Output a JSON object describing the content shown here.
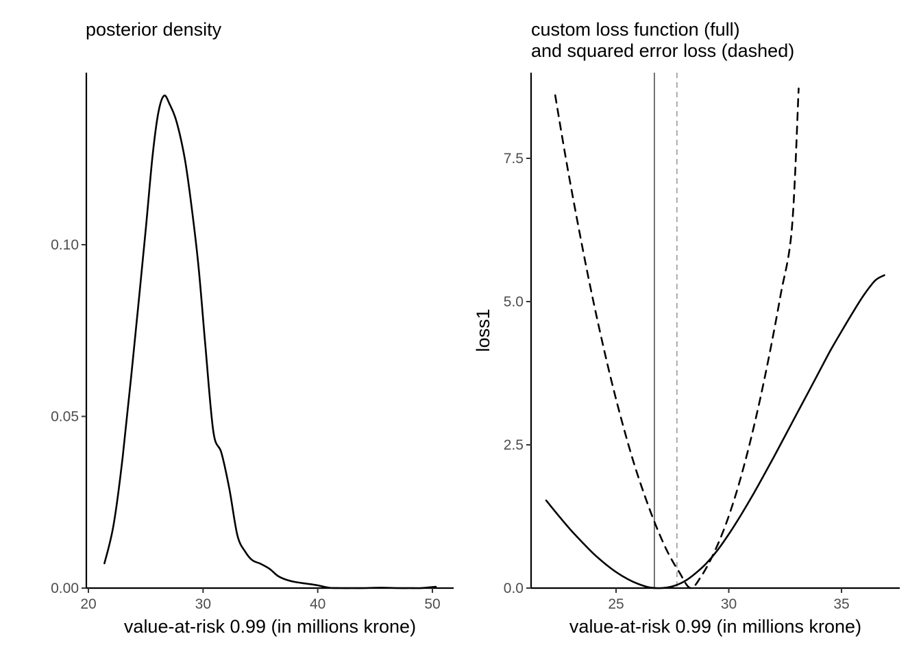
{
  "chart_data": [
    {
      "type": "line",
      "title": "posterior density",
      "subtitle": "",
      "xlabel": "value-at-risk 0.99 (in millions krone)",
      "ylabel": "",
      "xlim": [
        20,
        52
      ],
      "ylim": [
        0,
        0.15
      ],
      "x_ticks": [
        20,
        30,
        40,
        50
      ],
      "x_tick_labels": [
        "20",
        "30",
        "40",
        "50"
      ],
      "y_ticks": [
        0,
        0.05,
        0.1
      ],
      "y_tick_labels": [
        "0.00",
        "0.05",
        "0.10"
      ],
      "grid": false,
      "series": [
        {
          "color": "#000000",
          "x": [
            21.4,
            22.2,
            23.0,
            24.0,
            25.0,
            25.6,
            26.1,
            26.6,
            27.1,
            27.7,
            28.4,
            29.0,
            29.6,
            30.2,
            30.9,
            31.6,
            32.3,
            33.0,
            33.7,
            34.3,
            35.0,
            35.8,
            36.5,
            37.2,
            38.0,
            39.0,
            40.0,
            41.0,
            42.0,
            43.0,
            44.0,
            45.0,
            46.0,
            47.0,
            48.0,
            49.0,
            50.3
          ],
          "y": [
            0.0072,
            0.0185,
            0.0385,
            0.0705,
            0.1045,
            0.126,
            0.1385,
            0.1434,
            0.1408,
            0.1357,
            0.1251,
            0.111,
            0.0938,
            0.0706,
            0.0455,
            0.0394,
            0.0288,
            0.0153,
            0.0105,
            0.0081,
            0.0071,
            0.0056,
            0.0036,
            0.0025,
            0.0018,
            0.0013,
            0.0008,
            0.0001,
            0.0,
            0.0,
            0.0,
            0.0001,
            0.0001,
            0.0,
            0.0,
            0.0,
            0.0004
          ]
        }
      ]
    },
    {
      "type": "line",
      "title": "custom loss function (full)",
      "subtitle": "and squared error loss (dashed)",
      "xlabel": "value-at-risk 0.99 (in millions krone)",
      "ylabel": "loss1",
      "xlim": [
        21.2,
        38.5
      ],
      "ylim": [
        0,
        9
      ],
      "x_ticks": [
        25,
        30,
        35
      ],
      "x_tick_labels": [
        "25",
        "30",
        "35"
      ],
      "y_ticks": [
        0,
        2.5,
        5,
        7.5
      ],
      "y_tick_labels": [
        "0.0",
        "2.5",
        "5.0",
        "7.5"
      ],
      "grid": false,
      "reference_lines": [
        {
          "x": 26.7,
          "color": "#000000",
          "style": "solid"
        },
        {
          "x": 27.7,
          "color": "#999999",
          "style": "dashed"
        }
      ],
      "series": [
        {
          "style": "solid",
          "color": "#000000",
          "x": [
            21.9,
            22.5,
            23.0,
            23.5,
            24.0,
            24.5,
            25.0,
            25.5,
            26.0,
            26.5,
            27.0,
            27.5,
            28.0,
            28.5,
            29.0,
            29.5,
            30.0,
            30.5,
            31.0,
            31.5,
            32.0,
            32.5,
            33.0,
            33.5,
            34.0,
            34.5,
            35.0,
            35.5,
            36.0,
            36.5,
            36.9
          ],
          "y": [
            1.53,
            1.24,
            1.01,
            0.8,
            0.6,
            0.43,
            0.28,
            0.16,
            0.07,
            0.01,
            0.0,
            0.03,
            0.11,
            0.25,
            0.43,
            0.66,
            0.94,
            1.25,
            1.58,
            1.93,
            2.29,
            2.66,
            3.03,
            3.4,
            3.77,
            4.14,
            4.48,
            4.81,
            5.12,
            5.37,
            5.46
          ]
        },
        {
          "style": "dashed",
          "color": "#000000",
          "x": [
            22.3,
            22.8,
            23.3,
            23.8,
            24.3,
            24.8,
            25.3,
            25.8,
            26.3,
            26.8,
            27.3,
            27.8,
            28.3,
            28.8,
            29.3,
            29.8,
            30.3,
            30.8,
            31.3,
            31.8,
            32.3,
            32.8,
            33.1
          ],
          "y": [
            8.6,
            7.44,
            6.37,
            5.37,
            4.45,
            3.61,
            2.85,
            2.17,
            1.58,
            1.06,
            0.62,
            0.28,
            0.0,
            0.22,
            0.58,
            1.04,
            1.62,
            2.32,
            3.14,
            4.07,
            5.12,
            6.28,
            8.72
          ]
        }
      ]
    }
  ]
}
